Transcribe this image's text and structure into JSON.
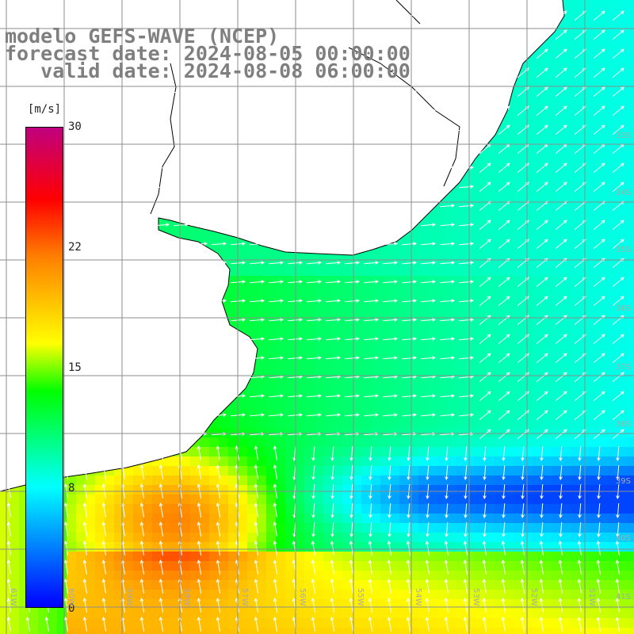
{
  "title": {
    "line1": "modelo GEFS-WAVE (NCEP)",
    "line2": "forecast date: 2024-08-05 00:00:00",
    "line3": "   valid date: 2024-08-08 06:00:00"
  },
  "colorbar": {
    "unit": "[m/s]",
    "ticks": [
      "30",
      "22",
      "15",
      "8",
      "0"
    ],
    "colors": [
      "#0000ff",
      "#00ffff",
      "#00ff00",
      "#ffff00",
      "#ff8000",
      "#ff0000",
      "#c0007f"
    ]
  },
  "map": {
    "lat_labels": [
      "33S",
      "34S",
      "35S",
      "36S",
      "37S",
      "38S",
      "39S",
      "40S",
      "41S"
    ],
    "lon_labels": [
      "61W",
      "60W",
      "59W",
      "58W",
      "57W",
      "56W",
      "55W",
      "54W",
      "53W",
      "52W",
      "51W"
    ],
    "land_color": "#ffffff",
    "grid_color": "#8c8c8c",
    "arrow_color": "#ffffff"
  }
}
